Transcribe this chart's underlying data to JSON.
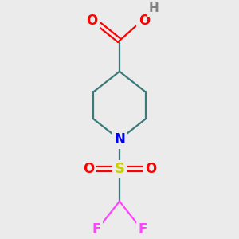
{
  "background_color": "#ebebeb",
  "colors": {
    "C": "#3a7a7a",
    "N": "#0000ff",
    "O": "#ff0000",
    "S": "#cccc00",
    "F": "#ff44ff",
    "H": "#808080"
  },
  "line_width": 1.6,
  "figsize": [
    3.0,
    3.0
  ],
  "dpi": 100,
  "xlim": [
    -1.1,
    1.1
  ],
  "ylim": [
    -2.0,
    1.65
  ]
}
